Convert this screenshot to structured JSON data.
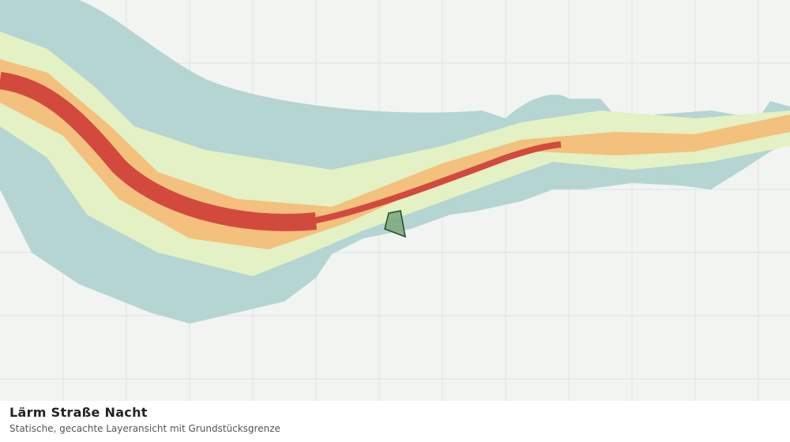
{
  "map": {
    "title": "Lärm Straße Nacht",
    "subtitle": "Statische, gecachte Layeransicht mit Grundstücksgrenze"
  }
}
